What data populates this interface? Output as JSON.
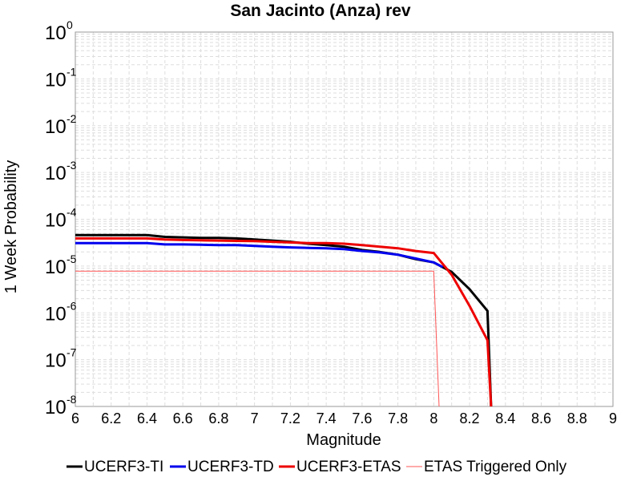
{
  "chart_data": {
    "type": "line",
    "title": "San Jacinto (Anza) rev",
    "xlabel": "Magnitude",
    "ylabel": "1 Week Probability",
    "xlim": [
      6,
      9
    ],
    "ylim": [
      1e-08,
      1
    ],
    "yscale": "log",
    "grid": true,
    "legend_position": "bottom",
    "xticks": [
      "6",
      "6.2",
      "6.4",
      "6.6",
      "6.8",
      "7",
      "7.2",
      "7.4",
      "7.6",
      "7.8",
      "8",
      "8.2",
      "8.4",
      "8.6",
      "8.8",
      "9"
    ],
    "yticks": [
      {
        "base": "10",
        "exp": "0",
        "value": 1
      },
      {
        "base": "10",
        "exp": "-1",
        "value": 0.1
      },
      {
        "base": "10",
        "exp": "-2",
        "value": 0.01
      },
      {
        "base": "10",
        "exp": "-3",
        "value": 0.001
      },
      {
        "base": "10",
        "exp": "-4",
        "value": 0.0001
      },
      {
        "base": "10",
        "exp": "-5",
        "value": 1e-05
      },
      {
        "base": "10",
        "exp": "-6",
        "value": 1e-06
      },
      {
        "base": "10",
        "exp": "-7",
        "value": 1e-07
      },
      {
        "base": "10",
        "exp": "-8",
        "value": 1e-08
      }
    ],
    "series": [
      {
        "name": "UCERF3-TI",
        "color": "#000000",
        "width": 3,
        "x": [
          6.0,
          6.1,
          6.2,
          6.3,
          6.4,
          6.5,
          6.6,
          6.7,
          6.8,
          6.9,
          7.0,
          7.1,
          7.2,
          7.3,
          7.4,
          7.5,
          7.6,
          7.7,
          7.8,
          7.9,
          8.0,
          8.1,
          8.2,
          8.3,
          8.32
        ],
        "y": [
          4.6e-05,
          4.6e-05,
          4.6e-05,
          4.6e-05,
          4.6e-05,
          4.2e-05,
          4.1e-05,
          4e-05,
          4e-05,
          3.9e-05,
          3.7e-05,
          3.5e-05,
          3.3e-05,
          3e-05,
          2.8e-05,
          2.6e-05,
          2.2e-05,
          2e-05,
          1.75e-05,
          1.4e-05,
          1.2e-05,
          7.5e-06,
          3.2e-06,
          1.1e-06,
          1e-08
        ]
      },
      {
        "name": "UCERF3-TD",
        "color": "#0000ee",
        "width": 3,
        "x": [
          6.0,
          6.1,
          6.2,
          6.3,
          6.4,
          6.5,
          6.6,
          6.7,
          6.8,
          6.9,
          7.0,
          7.1,
          7.2,
          7.3,
          7.4,
          7.5,
          7.6,
          7.7,
          7.8,
          7.9,
          8.0,
          8.05
        ],
        "y": [
          3.1e-05,
          3.1e-05,
          3.1e-05,
          3.1e-05,
          3.1e-05,
          2.9e-05,
          2.9e-05,
          2.85e-05,
          2.8e-05,
          2.8e-05,
          2.7e-05,
          2.6e-05,
          2.5e-05,
          2.45e-05,
          2.4e-05,
          2.3e-05,
          2.1e-05,
          1.95e-05,
          1.75e-05,
          1.45e-05,
          1.2e-05,
          9.5e-06
        ]
      },
      {
        "name": "UCERF3-ETAS",
        "color": "#ee0000",
        "width": 3,
        "x": [
          6.0,
          6.1,
          6.2,
          6.3,
          6.4,
          6.5,
          6.6,
          6.7,
          6.8,
          6.9,
          7.0,
          7.1,
          7.2,
          7.3,
          7.4,
          7.5,
          7.6,
          7.7,
          7.8,
          7.9,
          8.0,
          8.1,
          8.2,
          8.3,
          8.32
        ],
        "y": [
          3.9e-05,
          3.9e-05,
          3.9e-05,
          3.9e-05,
          3.9e-05,
          3.7e-05,
          3.6e-05,
          3.55e-05,
          3.5e-05,
          3.45e-05,
          3.4e-05,
          3.3e-05,
          3.2e-05,
          3.1e-05,
          3.1e-05,
          3e-05,
          2.8e-05,
          2.6e-05,
          2.4e-05,
          2.1e-05,
          1.9e-05,
          6.5e-06,
          1.4e-06,
          2.6e-07,
          1e-08
        ]
      },
      {
        "name": "ETAS Triggered Only",
        "color": "#ff5555",
        "width": 1,
        "x": [
          6.0,
          8.0,
          8.03
        ],
        "y": [
          7.8e-06,
          7.8e-06,
          1e-08
        ]
      }
    ]
  }
}
